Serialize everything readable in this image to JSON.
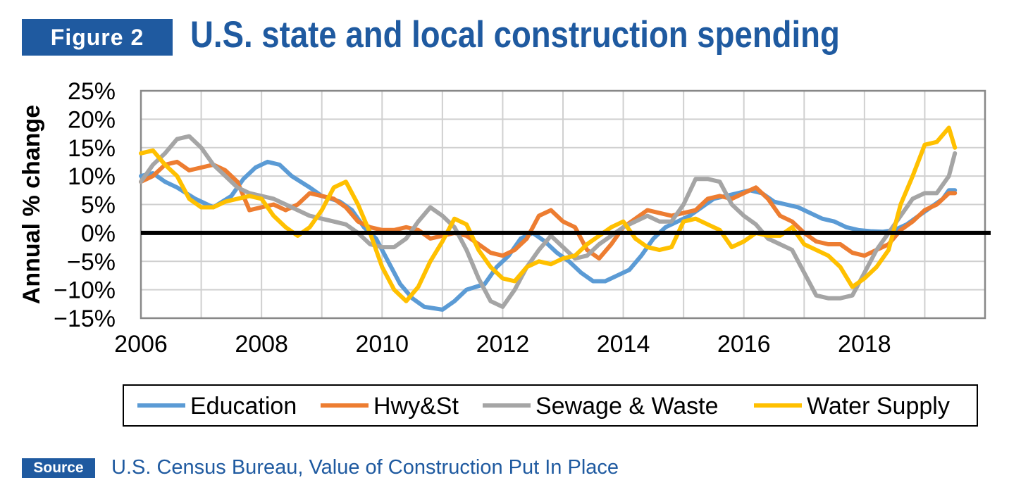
{
  "figure_label": "Figure 2",
  "title": "U.S. state and local construction spending",
  "source_label": "Source",
  "source_text": "U.S. Census Bureau, Value of Construction Put In Place",
  "colors": {
    "brand_blue": "#1f5aa0",
    "grid": "#d0d0d0",
    "frame": "#888888",
    "zero_line": "#000000"
  },
  "chart_data": {
    "type": "line",
    "ylabel": "Annual % change",
    "xlabel": "",
    "xlim": [
      2006,
      2020
    ],
    "ylim": [
      -15,
      25
    ],
    "x_ticks": [
      2006,
      2008,
      2010,
      2012,
      2014,
      2016,
      2018
    ],
    "x_tick_labels": [
      "2006",
      "2008",
      "2010",
      "2012",
      "2014",
      "2016",
      "2018"
    ],
    "y_ticks": [
      -15,
      -10,
      -5,
      0,
      5,
      10,
      15,
      20,
      25
    ],
    "y_tick_labels": [
      "−15%",
      "−10%",
      "−5%",
      "0%",
      "5%",
      "10%",
      "15%",
      "20%",
      "25%"
    ],
    "grid": true,
    "legend_position": "bottom",
    "series": [
      {
        "name": "Education",
        "color": "#5b9bd5",
        "points": [
          [
            2006.0,
            10
          ],
          [
            2006.2,
            10.5
          ],
          [
            2006.4,
            9
          ],
          [
            2006.6,
            8
          ],
          [
            2006.9,
            6
          ],
          [
            2007.2,
            4.5
          ],
          [
            2007.5,
            6.5
          ],
          [
            2007.7,
            9.5
          ],
          [
            2007.9,
            11.5
          ],
          [
            2008.1,
            12.5
          ],
          [
            2008.3,
            12
          ],
          [
            2008.5,
            10
          ],
          [
            2008.8,
            8
          ],
          [
            2009.0,
            6.5
          ],
          [
            2009.3,
            5.5
          ],
          [
            2009.5,
            4
          ],
          [
            2009.7,
            1
          ],
          [
            2009.9,
            -1
          ],
          [
            2010.1,
            -5
          ],
          [
            2010.3,
            -9
          ],
          [
            2010.5,
            -11.5
          ],
          [
            2010.7,
            -13
          ],
          [
            2011.0,
            -13.5
          ],
          [
            2011.2,
            -12
          ],
          [
            2011.4,
            -10
          ],
          [
            2011.7,
            -9
          ],
          [
            2011.9,
            -6
          ],
          [
            2012.1,
            -4
          ],
          [
            2012.3,
            -1
          ],
          [
            2012.5,
            0
          ],
          [
            2012.7,
            -1.5
          ],
          [
            2012.9,
            -3.5
          ],
          [
            2013.1,
            -5
          ],
          [
            2013.3,
            -7
          ],
          [
            2013.5,
            -8.5
          ],
          [
            2013.7,
            -8.5
          ],
          [
            2013.9,
            -7.5
          ],
          [
            2014.1,
            -6.5
          ],
          [
            2014.3,
            -4
          ],
          [
            2014.5,
            -1
          ],
          [
            2014.7,
            1
          ],
          [
            2014.9,
            2
          ],
          [
            2015.1,
            3
          ],
          [
            2015.3,
            4.5
          ],
          [
            2015.5,
            6
          ],
          [
            2015.7,
            6.5
          ],
          [
            2015.9,
            7
          ],
          [
            2016.1,
            7.5
          ],
          [
            2016.3,
            7
          ],
          [
            2016.5,
            5.5
          ],
          [
            2016.7,
            5
          ],
          [
            2016.9,
            4.5
          ],
          [
            2017.1,
            3.5
          ],
          [
            2017.3,
            2.5
          ],
          [
            2017.5,
            2
          ],
          [
            2017.7,
            1
          ],
          [
            2017.9,
            0.5
          ],
          [
            2018.1,
            0.3
          ],
          [
            2018.3,
            0.2
          ],
          [
            2018.5,
            0.5
          ],
          [
            2018.7,
            1.5
          ],
          [
            2018.9,
            3
          ],
          [
            2019.1,
            4.5
          ],
          [
            2019.3,
            6
          ],
          [
            2019.4,
            7.5
          ],
          [
            2019.5,
            7.5
          ]
        ]
      },
      {
        "name": "Hwy&St",
        "color": "#ed7d31",
        "points": [
          [
            2006.0,
            9
          ],
          [
            2006.2,
            10
          ],
          [
            2006.4,
            12
          ],
          [
            2006.6,
            12.5
          ],
          [
            2006.8,
            11
          ],
          [
            2007.0,
            11.5
          ],
          [
            2007.2,
            12
          ],
          [
            2007.4,
            11
          ],
          [
            2007.6,
            9
          ],
          [
            2007.8,
            4
          ],
          [
            2008.0,
            4.5
          ],
          [
            2008.2,
            5
          ],
          [
            2008.4,
            4
          ],
          [
            2008.6,
            5
          ],
          [
            2008.8,
            7
          ],
          [
            2009.0,
            6.5
          ],
          [
            2009.2,
            6
          ],
          [
            2009.4,
            4.5
          ],
          [
            2009.6,
            2
          ],
          [
            2009.8,
            1
          ],
          [
            2010.0,
            0.5
          ],
          [
            2010.2,
            0.5
          ],
          [
            2010.4,
            1
          ],
          [
            2010.6,
            0.5
          ],
          [
            2010.8,
            -1
          ],
          [
            2011.0,
            -0.5
          ],
          [
            2011.2,
            0
          ],
          [
            2011.4,
            -0.5
          ],
          [
            2011.6,
            -2
          ],
          [
            2011.8,
            -3.5
          ],
          [
            2012.0,
            -4
          ],
          [
            2012.2,
            -3
          ],
          [
            2012.4,
            -1
          ],
          [
            2012.6,
            3
          ],
          [
            2012.8,
            4
          ],
          [
            2013.0,
            2
          ],
          [
            2013.2,
            1
          ],
          [
            2013.4,
            -3
          ],
          [
            2013.6,
            -4.5
          ],
          [
            2013.8,
            -2
          ],
          [
            2014.0,
            1
          ],
          [
            2014.2,
            2.5
          ],
          [
            2014.4,
            4
          ],
          [
            2014.6,
            3.5
          ],
          [
            2014.8,
            3
          ],
          [
            2015.0,
            3.5
          ],
          [
            2015.2,
            4
          ],
          [
            2015.4,
            6
          ],
          [
            2015.6,
            6.5
          ],
          [
            2015.8,
            6
          ],
          [
            2016.0,
            7
          ],
          [
            2016.2,
            8
          ],
          [
            2016.4,
            6
          ],
          [
            2016.6,
            3
          ],
          [
            2016.8,
            2
          ],
          [
            2017.0,
            0
          ],
          [
            2017.2,
            -1.5
          ],
          [
            2017.4,
            -2
          ],
          [
            2017.6,
            -2
          ],
          [
            2017.8,
            -3.5
          ],
          [
            2018.0,
            -4
          ],
          [
            2018.2,
            -3
          ],
          [
            2018.4,
            -2
          ],
          [
            2018.6,
            0.5
          ],
          [
            2018.8,
            2
          ],
          [
            2019.0,
            4
          ],
          [
            2019.2,
            5
          ],
          [
            2019.4,
            7
          ],
          [
            2019.5,
            7
          ]
        ]
      },
      {
        "name": "Sewage & Waste",
        "color": "#a5a5a5",
        "points": [
          [
            2006.0,
            9
          ],
          [
            2006.2,
            12
          ],
          [
            2006.4,
            14
          ],
          [
            2006.6,
            16.5
          ],
          [
            2006.8,
            17
          ],
          [
            2007.0,
            15
          ],
          [
            2007.2,
            12
          ],
          [
            2007.4,
            10
          ],
          [
            2007.6,
            8
          ],
          [
            2007.8,
            7
          ],
          [
            2008.0,
            6.5
          ],
          [
            2008.2,
            6
          ],
          [
            2008.4,
            5
          ],
          [
            2008.6,
            4
          ],
          [
            2008.8,
            3
          ],
          [
            2009.0,
            2.5
          ],
          [
            2009.2,
            2
          ],
          [
            2009.4,
            1.5
          ],
          [
            2009.6,
            0
          ],
          [
            2009.8,
            -2
          ],
          [
            2010.0,
            -2.5
          ],
          [
            2010.2,
            -2.5
          ],
          [
            2010.4,
            -1
          ],
          [
            2010.6,
            2
          ],
          [
            2010.8,
            4.5
          ],
          [
            2011.0,
            3
          ],
          [
            2011.2,
            1
          ],
          [
            2011.4,
            -3
          ],
          [
            2011.6,
            -8
          ],
          [
            2011.8,
            -12
          ],
          [
            2012.0,
            -13
          ],
          [
            2012.2,
            -10
          ],
          [
            2012.4,
            -6
          ],
          [
            2012.6,
            -3
          ],
          [
            2012.8,
            -0.5
          ],
          [
            2013.0,
            -2.5
          ],
          [
            2013.2,
            -4.5
          ],
          [
            2013.4,
            -4
          ],
          [
            2013.6,
            -2
          ],
          [
            2013.8,
            -0.5
          ],
          [
            2014.0,
            1
          ],
          [
            2014.2,
            2
          ],
          [
            2014.4,
            3
          ],
          [
            2014.6,
            2
          ],
          [
            2014.8,
            2
          ],
          [
            2015.0,
            5
          ],
          [
            2015.2,
            9.5
          ],
          [
            2015.4,
            9.5
          ],
          [
            2015.6,
            9
          ],
          [
            2015.8,
            5
          ],
          [
            2016.0,
            3
          ],
          [
            2016.2,
            1.5
          ],
          [
            2016.4,
            -1
          ],
          [
            2016.6,
            -2
          ],
          [
            2016.8,
            -3
          ],
          [
            2017.0,
            -7
          ],
          [
            2017.2,
            -11
          ],
          [
            2017.4,
            -11.5
          ],
          [
            2017.6,
            -11.5
          ],
          [
            2017.8,
            -11
          ],
          [
            2018.0,
            -7
          ],
          [
            2018.2,
            -3
          ],
          [
            2018.4,
            0
          ],
          [
            2018.6,
            3
          ],
          [
            2018.8,
            6
          ],
          [
            2019.0,
            7
          ],
          [
            2019.2,
            7
          ],
          [
            2019.4,
            10
          ],
          [
            2019.5,
            14
          ]
        ]
      },
      {
        "name": "Water Supply",
        "color": "#ffc000",
        "points": [
          [
            2006.0,
            14
          ],
          [
            2006.2,
            14.5
          ],
          [
            2006.4,
            12
          ],
          [
            2006.6,
            10
          ],
          [
            2006.8,
            6
          ],
          [
            2007.0,
            4.5
          ],
          [
            2007.2,
            4.5
          ],
          [
            2007.4,
            5.5
          ],
          [
            2007.6,
            6
          ],
          [
            2007.8,
            6.5
          ],
          [
            2008.0,
            6
          ],
          [
            2008.2,
            3
          ],
          [
            2008.4,
            1
          ],
          [
            2008.6,
            -0.5
          ],
          [
            2008.8,
            1
          ],
          [
            2009.0,
            4
          ],
          [
            2009.2,
            8
          ],
          [
            2009.4,
            9
          ],
          [
            2009.6,
            5
          ],
          [
            2009.8,
            0
          ],
          [
            2010.0,
            -6
          ],
          [
            2010.2,
            -10
          ],
          [
            2010.4,
            -12
          ],
          [
            2010.6,
            -9.5
          ],
          [
            2010.8,
            -5
          ],
          [
            2011.0,
            -1.5
          ],
          [
            2011.2,
            2.5
          ],
          [
            2011.4,
            1.5
          ],
          [
            2011.6,
            -3
          ],
          [
            2011.8,
            -6
          ],
          [
            2012.0,
            -8
          ],
          [
            2012.2,
            -8.5
          ],
          [
            2012.4,
            -6
          ],
          [
            2012.6,
            -5
          ],
          [
            2012.8,
            -5.5
          ],
          [
            2013.0,
            -4.5
          ],
          [
            2013.2,
            -4
          ],
          [
            2013.4,
            -2
          ],
          [
            2013.6,
            -0.5
          ],
          [
            2013.8,
            1
          ],
          [
            2014.0,
            2
          ],
          [
            2014.2,
            -1
          ],
          [
            2014.4,
            -2.5
          ],
          [
            2014.6,
            -3
          ],
          [
            2014.8,
            -2.5
          ],
          [
            2015.0,
            2
          ],
          [
            2015.2,
            2.5
          ],
          [
            2015.4,
            1.5
          ],
          [
            2015.6,
            0.5
          ],
          [
            2015.8,
            -2.5
          ],
          [
            2016.0,
            -1.5
          ],
          [
            2016.2,
            0
          ],
          [
            2016.4,
            -0.5
          ],
          [
            2016.6,
            -0.5
          ],
          [
            2016.8,
            1
          ],
          [
            2017.0,
            -2
          ],
          [
            2017.2,
            -3
          ],
          [
            2017.4,
            -4
          ],
          [
            2017.6,
            -6
          ],
          [
            2017.8,
            -9.5
          ],
          [
            2018.0,
            -8
          ],
          [
            2018.2,
            -6
          ],
          [
            2018.4,
            -3
          ],
          [
            2018.6,
            5
          ],
          [
            2018.8,
            10
          ],
          [
            2019.0,
            15.5
          ],
          [
            2019.2,
            16
          ],
          [
            2019.4,
            18.5
          ],
          [
            2019.5,
            15
          ]
        ]
      }
    ]
  }
}
